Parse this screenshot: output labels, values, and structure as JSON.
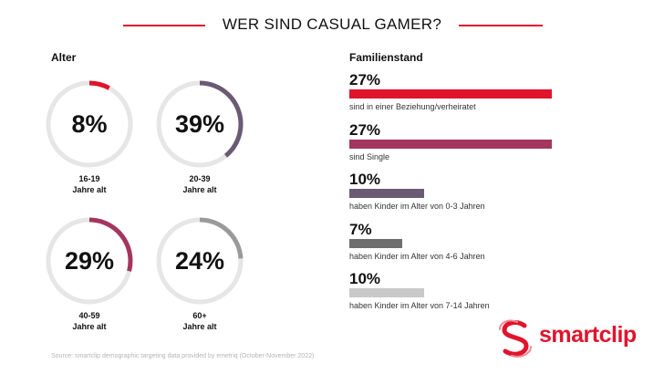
{
  "header": {
    "title": "WER SIND CASUAL GAMER?"
  },
  "age_section": {
    "label": "Alter"
  },
  "family_section": {
    "label": "Familienstand"
  },
  "chart_data": [
    {
      "type": "donut",
      "title": "Alter",
      "track_color": "#e6e6e6",
      "items": [
        {
          "value": 8,
          "label": "8%",
          "caption_line1": "16-19",
          "caption_line2": "Jahre alt",
          "color": "#e0142c"
        },
        {
          "value": 39,
          "label": "39%",
          "caption_line1": "20-39",
          "caption_line2": "Jahre alt",
          "color": "#6b5a73"
        },
        {
          "value": 29,
          "label": "29%",
          "caption_line1": "40-59",
          "caption_line2": "Jahre alt",
          "color": "#a3365e"
        },
        {
          "value": 24,
          "label": "24%",
          "caption_line1": "60+",
          "caption_line2": "Jahre alt",
          "color": "#9a9a9a"
        }
      ]
    },
    {
      "type": "bar",
      "title": "Familienstand",
      "max": 27,
      "items": [
        {
          "value": 27,
          "label": "27%",
          "description": "sind in einer Beziehung/verheiratet",
          "color": "#e0142c"
        },
        {
          "value": 27,
          "label": "27%",
          "description": "sind Single",
          "color": "#a3365e"
        },
        {
          "value": 10,
          "label": "10%",
          "description": "haben Kinder im Alter von 0-3 Jahren",
          "color": "#6b5a73"
        },
        {
          "value": 7,
          "label": "7%",
          "description": "haben Kinder im Alter von 4-6 Jahren",
          "color": "#6e6e6e"
        },
        {
          "value": 10,
          "label": "10%",
          "description": "haben Kinder im Alter von 7-14 Jahren",
          "color": "#c9c9c9"
        }
      ]
    }
  ],
  "footer": {
    "source": "Source: smartclip demographic targeting data provided by emetriq (October-November 2022)"
  },
  "brand": {
    "name": "smartclip",
    "color": "#e0142c"
  }
}
